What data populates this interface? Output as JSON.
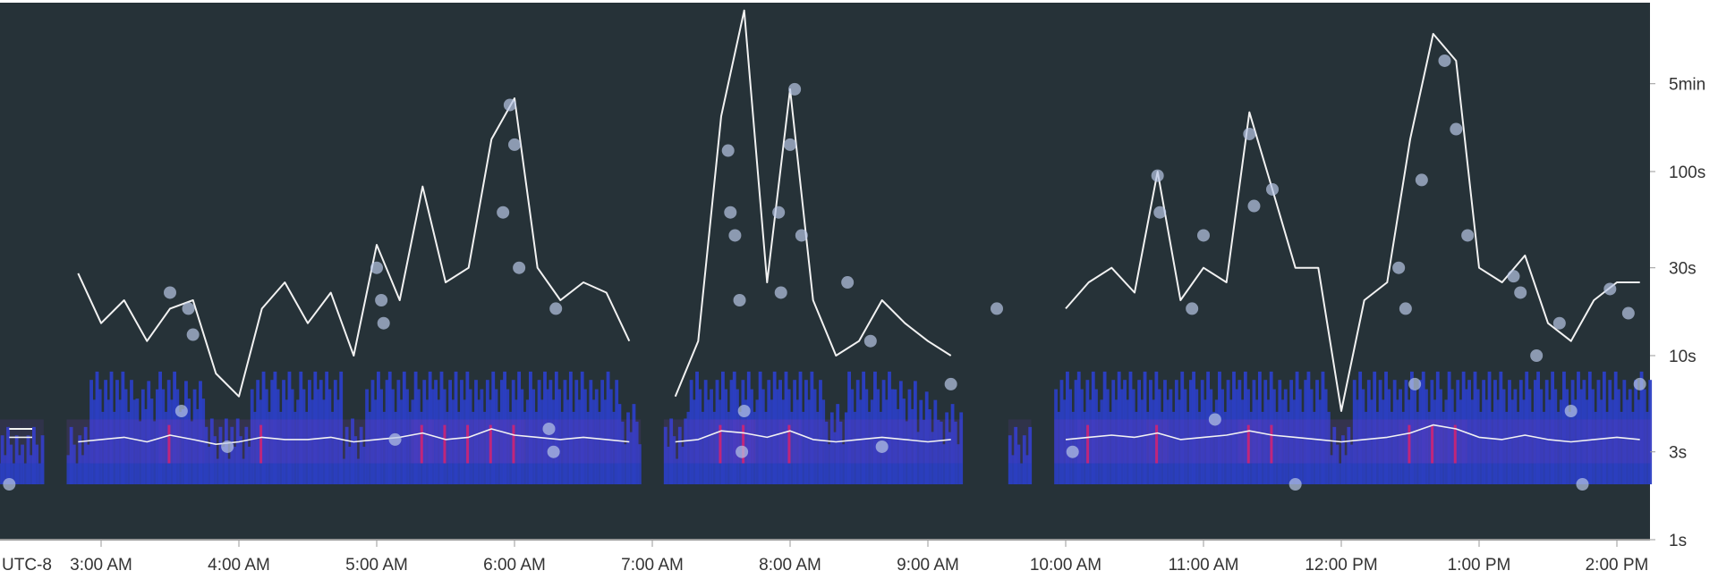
{
  "chart_data": {
    "type": "heatmap",
    "title": "",
    "xlabel": "",
    "ylabel": "",
    "timezone_label": "UTC-8",
    "y_scale": "log",
    "ylim_seconds": [
      1,
      900
    ],
    "xlim": [
      "02:16",
      "14:14"
    ],
    "grid": false,
    "background_color": "#263238",
    "colors": {
      "heat_low": "#2b3fc4",
      "heat_mid": "#7a3bc0",
      "heat_high": "#e0206a",
      "line": "#f2f2f2",
      "outlier": "#b8c6e6"
    },
    "x_ticks": [
      {
        "t": "03:00",
        "label": "3:00 AM"
      },
      {
        "t": "04:00",
        "label": "4:00 AM"
      },
      {
        "t": "05:00",
        "label": "5:00 AM"
      },
      {
        "t": "06:00",
        "label": "6:00 AM"
      },
      {
        "t": "07:00",
        "label": "7:00 AM"
      },
      {
        "t": "08:00",
        "label": "8:00 AM"
      },
      {
        "t": "09:00",
        "label": "9:00 AM"
      },
      {
        "t": "10:00",
        "label": "10:00 AM"
      },
      {
        "t": "11:00",
        "label": "11:00 AM"
      },
      {
        "t": "12:00",
        "label": "12:00 PM"
      },
      {
        "t": "13:00",
        "label": "1:00 PM"
      },
      {
        "t": "14:00",
        "label": "2:00 PM"
      }
    ],
    "y_ticks": [
      {
        "v": 1,
        "label": "1s"
      },
      {
        "v": 3,
        "label": "3s"
      },
      {
        "v": 10,
        "label": "10s"
      },
      {
        "v": 30,
        "label": "30s"
      },
      {
        "v": 100,
        "label": "100s"
      },
      {
        "v": 300,
        "label": "5min"
      }
    ],
    "series": {
      "times": [
        "02:20",
        "02:30",
        "02:40",
        "02:50",
        "03:00",
        "03:10",
        "03:20",
        "03:30",
        "03:40",
        "03:50",
        "04:00",
        "04:10",
        "04:20",
        "04:30",
        "04:40",
        "04:50",
        "05:00",
        "05:10",
        "05:20",
        "05:30",
        "05:40",
        "05:50",
        "06:00",
        "06:10",
        "06:20",
        "06:30",
        "06:40",
        "06:50",
        "07:00",
        "07:10",
        "07:20",
        "07:30",
        "07:40",
        "07:50",
        "08:00",
        "08:10",
        "08:20",
        "08:30",
        "08:40",
        "08:50",
        "09:00",
        "09:10",
        "09:20",
        "09:30",
        "09:40",
        "09:50",
        "10:00",
        "10:10",
        "10:20",
        "10:30",
        "10:40",
        "10:50",
        "11:00",
        "11:10",
        "11:20",
        "11:30",
        "11:40",
        "11:50",
        "12:00",
        "12:10",
        "12:20",
        "12:30",
        "12:40",
        "12:50",
        "13:00",
        "13:10",
        "13:20",
        "13:30",
        "13:40",
        "13:50",
        "14:00",
        "14:10"
      ],
      "max_seconds": [
        4,
        4,
        null,
        28,
        15,
        20,
        12,
        18,
        20,
        8,
        6,
        18,
        25,
        15,
        22,
        10,
        40,
        20,
        83,
        25,
        30,
        150,
        250,
        30,
        20,
        25,
        22,
        12,
        null,
        6,
        12,
        200,
        750,
        25,
        280,
        20,
        10,
        12,
        20,
        15,
        12,
        10,
        null,
        null,
        4,
        null,
        18,
        25,
        30,
        22,
        100,
        20,
        30,
        25,
        210,
        80,
        30,
        30,
        5,
        20,
        25,
        150,
        560,
        400,
        30,
        25,
        35,
        15,
        12,
        20,
        25,
        25
      ],
      "p50_seconds": [
        3.6,
        3.6,
        null,
        3.4,
        3.5,
        3.6,
        3.4,
        3.7,
        3.5,
        3.3,
        3.4,
        3.6,
        3.5,
        3.5,
        3.6,
        3.4,
        3.5,
        3.6,
        3.8,
        3.5,
        3.6,
        4.0,
        3.7,
        3.6,
        3.5,
        3.6,
        3.5,
        3.4,
        null,
        3.4,
        3.5,
        3.9,
        3.8,
        3.6,
        3.9,
        3.5,
        3.4,
        3.5,
        3.6,
        3.5,
        3.4,
        3.5,
        null,
        null,
        3.6,
        null,
        3.5,
        3.6,
        3.7,
        3.6,
        3.8,
        3.5,
        3.6,
        3.7,
        3.9,
        3.7,
        3.6,
        3.5,
        3.4,
        3.5,
        3.6,
        3.8,
        4.2,
        4.0,
        3.6,
        3.5,
        3.7,
        3.5,
        3.4,
        3.5,
        3.6,
        3.5
      ],
      "heat_top_seconds": [
        4.5,
        4.5,
        null,
        4.5,
        9,
        9,
        8,
        9,
        8,
        5,
        5,
        9,
        9,
        9,
        9,
        5,
        9,
        9,
        9,
        9,
        9,
        9,
        9,
        9,
        9,
        9,
        9,
        6,
        null,
        5,
        9,
        9,
        9,
        9,
        9,
        9,
        6,
        9,
        9,
        8,
        7,
        6,
        null,
        null,
        4.5,
        null,
        9,
        9,
        9,
        9,
        9,
        9,
        9,
        9,
        9,
        9,
        9,
        9,
        4.5,
        9,
        9,
        9,
        9,
        9,
        9,
        9,
        9,
        9,
        9,
        9,
        9,
        9
      ],
      "heat_intensity": [
        0.1,
        0.1,
        null,
        0.2,
        0.4,
        0.3,
        0.3,
        0.6,
        0.4,
        0.2,
        0.2,
        0.5,
        0.4,
        0.4,
        0.3,
        0.2,
        0.4,
        0.3,
        0.7,
        0.5,
        0.5,
        0.6,
        0.6,
        0.4,
        0.3,
        0.4,
        0.3,
        0.2,
        null,
        0.2,
        0.3,
        0.6,
        0.8,
        0.4,
        0.6,
        0.3,
        0.2,
        0.3,
        0.3,
        0.3,
        0.2,
        0.2,
        null,
        null,
        0.1,
        null,
        0.3,
        0.5,
        0.4,
        0.4,
        0.6,
        0.3,
        0.4,
        0.4,
        0.7,
        0.5,
        0.4,
        0.3,
        0.2,
        0.3,
        0.4,
        0.6,
        0.7,
        0.6,
        0.3,
        0.3,
        0.4,
        0.3,
        0.2,
        0.3,
        0.3,
        0.3
      ]
    },
    "outliers": [
      [
        "02:20",
        2.0
      ],
      [
        "03:30",
        22
      ],
      [
        "03:35",
        5
      ],
      [
        "03:38",
        18
      ],
      [
        "03:40",
        13
      ],
      [
        "03:55",
        3.2
      ],
      [
        "05:00",
        30
      ],
      [
        "05:02",
        20
      ],
      [
        "05:03",
        15
      ],
      [
        "05:08",
        3.5
      ],
      [
        "05:55",
        60
      ],
      [
        "05:58",
        230
      ],
      [
        "06:00",
        140
      ],
      [
        "06:02",
        30
      ],
      [
        "06:15",
        4
      ],
      [
        "06:18",
        18
      ],
      [
        "06:17",
        3
      ],
      [
        "07:33",
        130
      ],
      [
        "07:34",
        60
      ],
      [
        "07:36",
        45
      ],
      [
        "07:38",
        20
      ],
      [
        "07:40",
        5
      ],
      [
        "07:39",
        3
      ],
      [
        "07:55",
        60
      ],
      [
        "07:56",
        22
      ],
      [
        "08:00",
        140
      ],
      [
        "08:02",
        280
      ],
      [
        "08:05",
        45
      ],
      [
        "08:25",
        25
      ],
      [
        "08:35",
        12
      ],
      [
        "08:40",
        3.2
      ],
      [
        "09:10",
        7
      ],
      [
        "09:30",
        18
      ],
      [
        "10:03",
        3
      ],
      [
        "10:40",
        95
      ],
      [
        "10:41",
        60
      ],
      [
        "10:55",
        18
      ],
      [
        "11:00",
        45
      ],
      [
        "11:05",
        4.5
      ],
      [
        "11:20",
        160
      ],
      [
        "11:22",
        65
      ],
      [
        "11:30",
        80
      ],
      [
        "11:40",
        2
      ],
      [
        "12:25",
        30
      ],
      [
        "12:28",
        18
      ],
      [
        "12:32",
        7
      ],
      [
        "12:35",
        90
      ],
      [
        "12:45",
        400
      ],
      [
        "12:50",
        170
      ],
      [
        "12:55",
        45
      ],
      [
        "13:15",
        27
      ],
      [
        "13:18",
        22
      ],
      [
        "13:25",
        10
      ],
      [
        "13:35",
        15
      ],
      [
        "13:40",
        5
      ],
      [
        "13:45",
        2.0
      ],
      [
        "13:57",
        23
      ],
      [
        "14:05",
        17
      ],
      [
        "14:10",
        7
      ]
    ]
  }
}
